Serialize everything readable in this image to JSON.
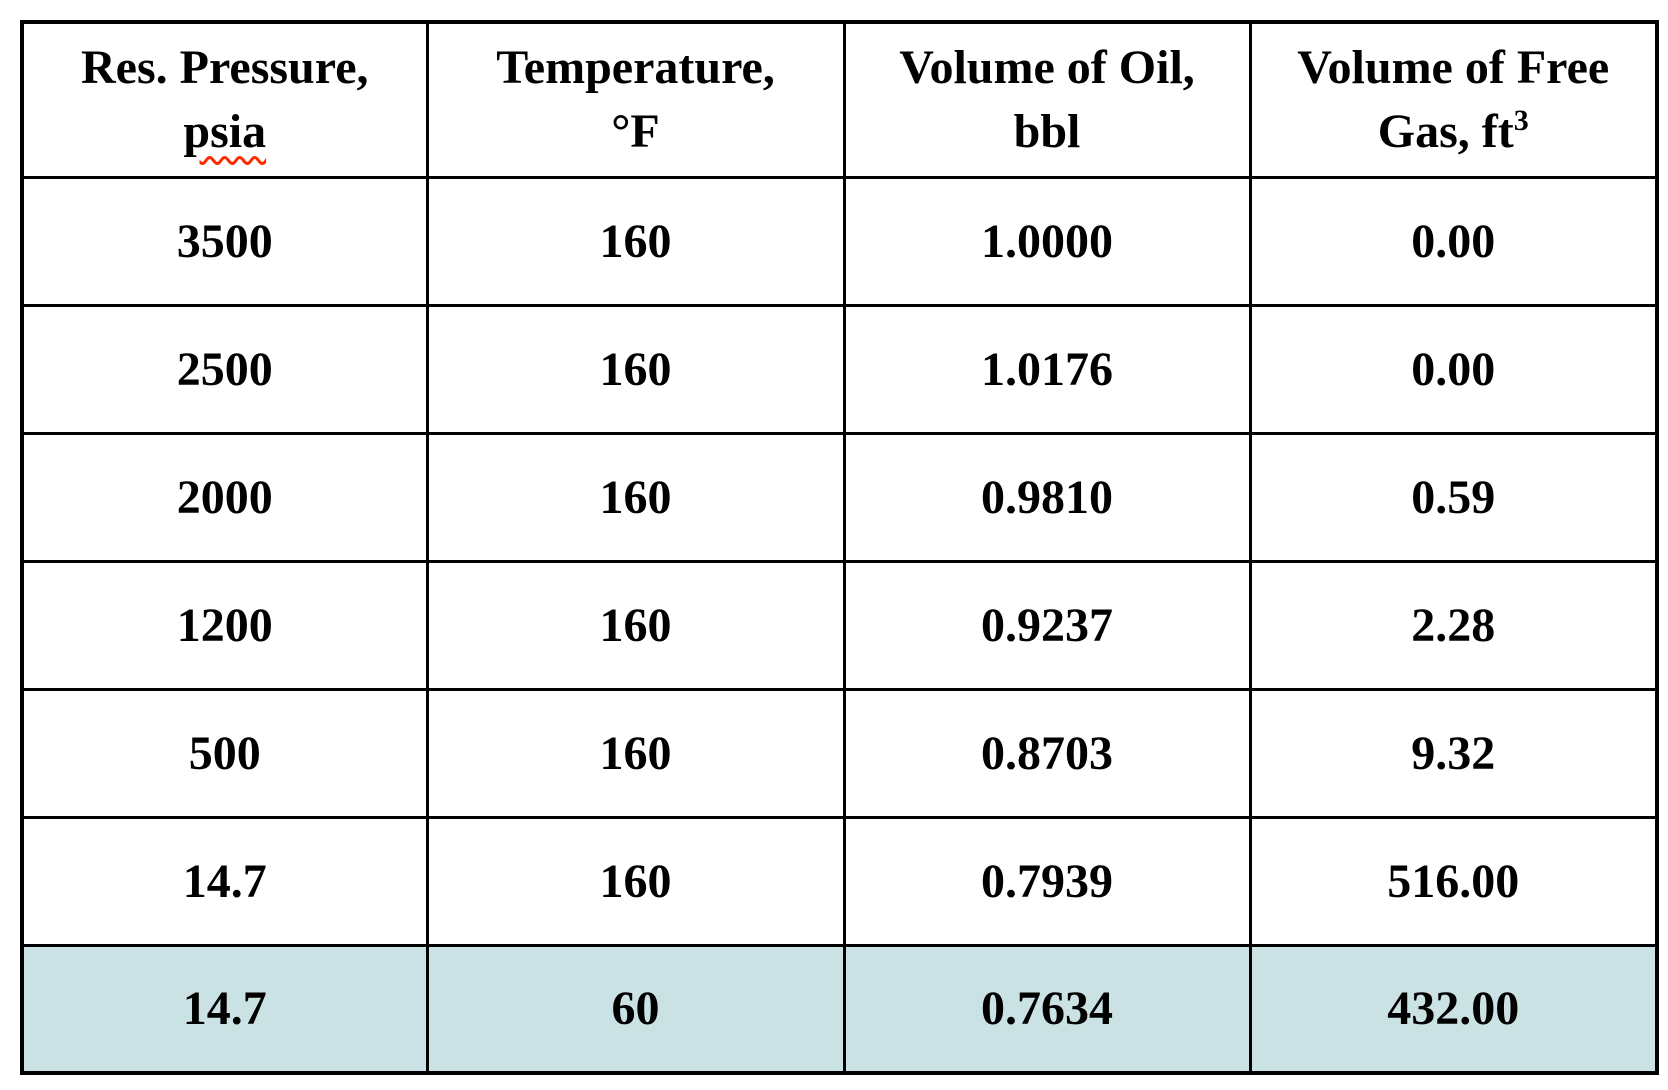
{
  "page": {
    "background_color": "#ffffff",
    "text_color": "#000000",
    "border_color": "#000000",
    "highlight_color": "#cbe2e5",
    "spellcheck_underline_color": "#ff2a00"
  },
  "table": {
    "headers": [
      {
        "line1": "Res. Pressure,",
        "line2": "psia"
      },
      {
        "line1": "Temperature,",
        "line2": "°F"
      },
      {
        "line1": "Volume of Oil,",
        "line2": "bbl"
      },
      {
        "line1": "Volume of Free",
        "line2": "Gas, ft",
        "line2_sup": "3"
      }
    ],
    "rows": [
      {
        "cells": [
          "3500",
          "160",
          "1.0000",
          "0.00"
        ],
        "highlighted": false
      },
      {
        "cells": [
          "2500",
          "160",
          "1.0176",
          "0.00"
        ],
        "highlighted": false
      },
      {
        "cells": [
          "2000",
          "160",
          "0.9810",
          "0.59"
        ],
        "highlighted": false
      },
      {
        "cells": [
          "1200",
          "160",
          "0.9237",
          "2.28"
        ],
        "highlighted": false
      },
      {
        "cells": [
          "500",
          "160",
          "0.8703",
          "9.32"
        ],
        "highlighted": false
      },
      {
        "cells": [
          "14.7",
          "160",
          "0.7939",
          "516.00"
        ],
        "highlighted": false
      },
      {
        "cells": [
          "14.7",
          "60",
          "0.7634",
          "432.00"
        ],
        "highlighted": true
      }
    ]
  },
  "chart_data": {
    "type": "table",
    "columns": [
      "Res. Pressure, psia",
      "Temperature, °F",
      "Volume of Oil, bbl",
      "Volume of Free Gas, ft3"
    ],
    "rows": [
      [
        3500,
        160,
        1.0,
        0.0
      ],
      [
        2500,
        160,
        1.0176,
        0.0
      ],
      [
        2000,
        160,
        0.981,
        0.59
      ],
      [
        1200,
        160,
        0.9237,
        2.28
      ],
      [
        500,
        160,
        0.8703,
        9.32
      ],
      [
        14.7,
        160,
        0.7939,
        516.0
      ],
      [
        14.7,
        60,
        0.7634,
        432.0
      ]
    ],
    "highlighted_row_index": 6
  }
}
